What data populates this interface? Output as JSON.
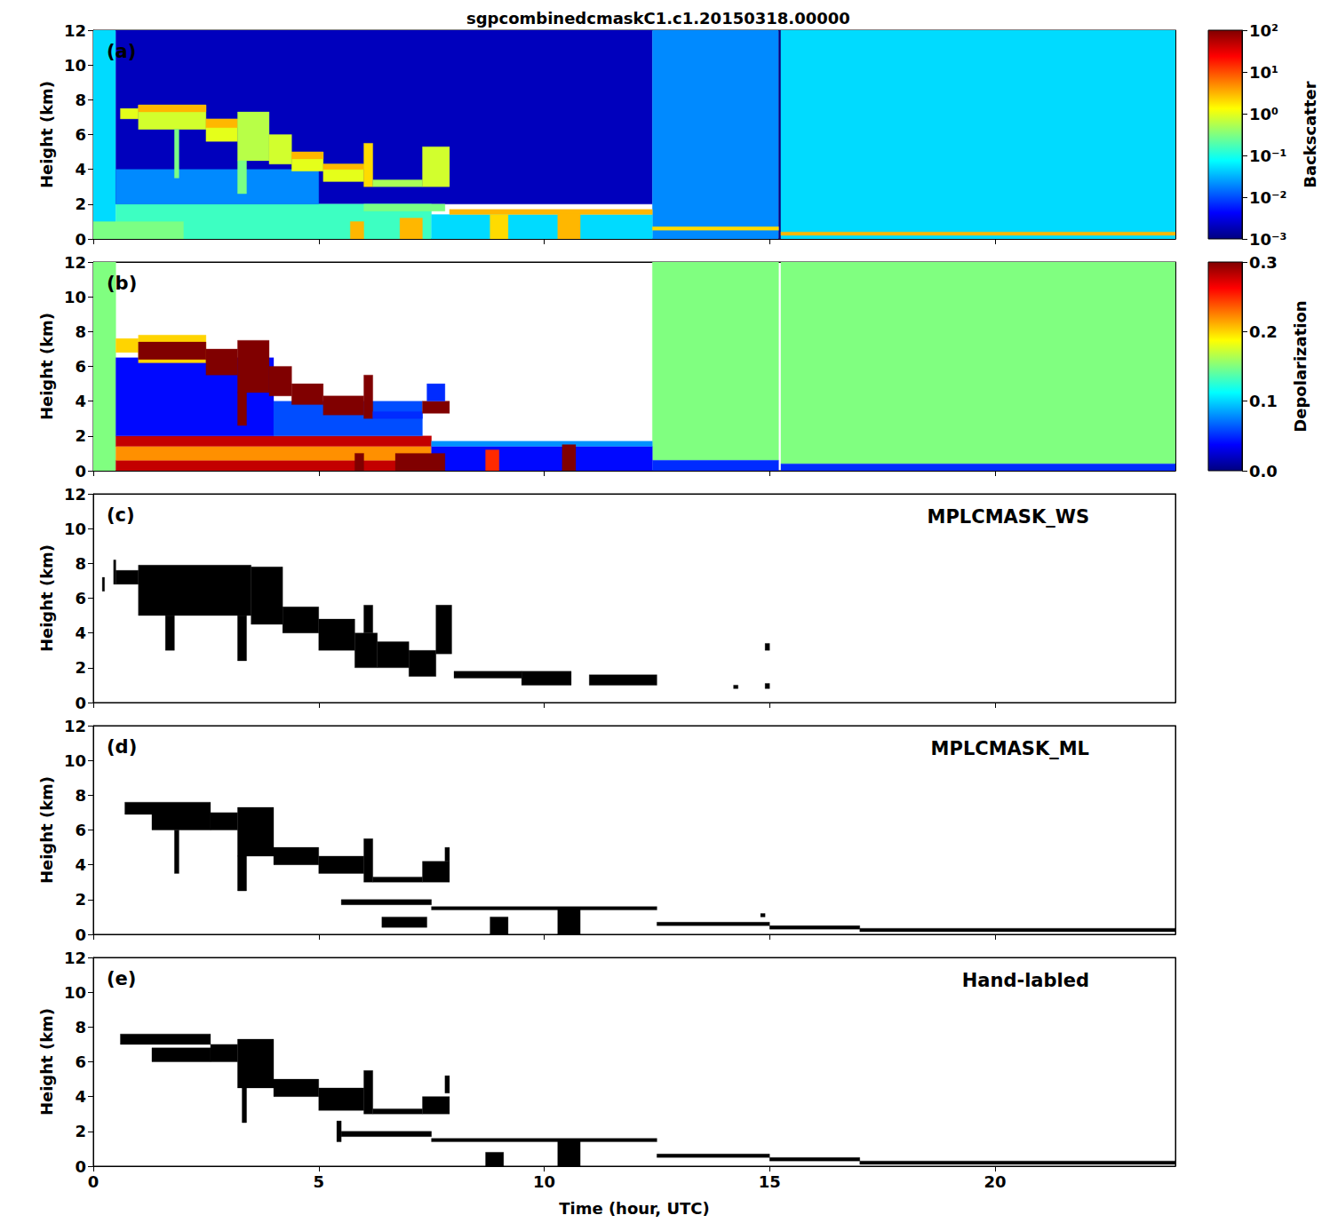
{
  "chart_data": [
    {
      "type": "heatmap",
      "title": "sgpcombinedcmaskC1.c1.20150318.00000",
      "panel": "(a)",
      "ylabel": "Height (km)",
      "tick_labels": "y",
      "xlim": [
        0,
        24
      ],
      "xticks": [
        0,
        5,
        10,
        15,
        20
      ],
      "ylim": [
        0,
        12
      ],
      "yticks": [
        0,
        2,
        4,
        6,
        8,
        10,
        12
      ],
      "colorbar": {
        "label": "Backscatter",
        "log": true,
        "range": [
          0.001,
          100
        ],
        "ticks": [
          {
            "value": 0.001,
            "label": "10⁻³"
          },
          {
            "value": 0.01,
            "label": "10⁻²"
          },
          {
            "value": 0.1,
            "label": "10⁻¹"
          },
          {
            "value": 1,
            "label": "10⁰"
          },
          {
            "value": 10,
            "label": "10¹"
          },
          {
            "value": 100,
            "label": "10²"
          }
        ]
      },
      "cells": [
        [
          0,
          0.5,
          0,
          12,
          0.05
        ],
        [
          0.5,
          12.4,
          2,
          12,
          0.002
        ],
        [
          12.4,
          15.2,
          0,
          12,
          0.02
        ],
        [
          15.2,
          15.25,
          0,
          12,
          0.001
        ],
        [
          15.25,
          24,
          0,
          12,
          0.05
        ],
        [
          0.5,
          7.5,
          0,
          2,
          0.15
        ],
        [
          0.5,
          5,
          2,
          4,
          0.02
        ],
        [
          7.5,
          12.4,
          0,
          1.4,
          0.05
        ],
        [
          0,
          2,
          0,
          1,
          0.3
        ],
        [
          0.6,
          1.0,
          6.9,
          7.5,
          1
        ],
        [
          1.0,
          2.5,
          6.3,
          7.7,
          0.8
        ],
        [
          1.0,
          2.5,
          7.3,
          7.7,
          3
        ],
        [
          1.8,
          1.9,
          3.5,
          6.3,
          0.3
        ],
        [
          2.5,
          3.2,
          5.6,
          6.9,
          1
        ],
        [
          2.5,
          3.2,
          6.4,
          6.9,
          3
        ],
        [
          3.2,
          3.9,
          4.5,
          7.3,
          0.6
        ],
        [
          3.2,
          3.4,
          2.6,
          4.5,
          0.3
        ],
        [
          3.9,
          4.4,
          4.3,
          6.0,
          0.8
        ],
        [
          4.4,
          5.1,
          3.9,
          5.0,
          1
        ],
        [
          4.4,
          5.1,
          4.6,
          5.0,
          3
        ],
        [
          5.1,
          6.0,
          3.3,
          4.3,
          1
        ],
        [
          5.1,
          6.0,
          4.0,
          4.3,
          3
        ],
        [
          6.0,
          6.2,
          3.0,
          5.5,
          2
        ],
        [
          6.2,
          7.3,
          3.0,
          3.4,
          0.5
        ],
        [
          7.3,
          7.9,
          3.0,
          5.3,
          0.8
        ],
        [
          6.0,
          7.8,
          1.6,
          2.0,
          0.3
        ],
        [
          7.9,
          12.4,
          1.4,
          1.7,
          3
        ],
        [
          12.4,
          15.2,
          0.5,
          0.7,
          2
        ],
        [
          15.25,
          24,
          0.2,
          0.4,
          3
        ],
        [
          5.7,
          6.0,
          0,
          1.0,
          3
        ],
        [
          6.8,
          7.3,
          0,
          1.2,
          3
        ],
        [
          8.8,
          9.2,
          0,
          1.4,
          2
        ],
        [
          10.3,
          10.8,
          0,
          1.5,
          3
        ]
      ]
    },
    {
      "type": "heatmap",
      "panel": "(b)",
      "ylabel": "Height (km)",
      "tick_labels": "y",
      "xlim": [
        0,
        24
      ],
      "xticks": [
        0,
        5,
        10,
        15,
        20
      ],
      "ylim": [
        0,
        12
      ],
      "yticks": [
        0,
        2,
        4,
        6,
        8,
        10,
        12
      ],
      "colorbar": {
        "label": "Depolarization",
        "range": [
          0,
          0.3
        ],
        "ticks": [
          {
            "value": 0,
            "label": "0.0"
          },
          0.1,
          0.2,
          0.3
        ]
      },
      "cells": [
        [
          0,
          0.5,
          0,
          12,
          0.15
        ],
        [
          12.4,
          15.2,
          0.6,
          12,
          0.15
        ],
        [
          15.25,
          24,
          0.4,
          12,
          0.15
        ],
        [
          0.5,
          7.5,
          0,
          0.6,
          0.28
        ],
        [
          0.5,
          7.5,
          0.6,
          1.4,
          0.22
        ],
        [
          0.5,
          7.5,
          1.4,
          2,
          0.28
        ],
        [
          0.5,
          4,
          2,
          6.5,
          0.04
        ],
        [
          4,
          7.3,
          2,
          4,
          0.06
        ],
        [
          7.5,
          12.4,
          0,
          1.4,
          0.04
        ],
        [
          7.5,
          12.4,
          1.4,
          1.7,
          0.08
        ],
        [
          12.4,
          15.2,
          0,
          0.6,
          0.05
        ],
        [
          15.25,
          24,
          0,
          0.4,
          0.05
        ],
        [
          0.5,
          1.0,
          6.8,
          7.6,
          0.2
        ],
        [
          1.0,
          2.5,
          6.2,
          7.8,
          0.2
        ],
        [
          1.0,
          2.5,
          6.4,
          7.4,
          0.3
        ],
        [
          2.5,
          3.2,
          5.5,
          7.0,
          0.3
        ],
        [
          3.2,
          3.9,
          4.5,
          7.5,
          0.3
        ],
        [
          3.9,
          4.4,
          4.3,
          6.0,
          0.3
        ],
        [
          4.4,
          5.1,
          3.8,
          5.0,
          0.3
        ],
        [
          5.1,
          6.0,
          3.2,
          4.3,
          0.3
        ],
        [
          6.0,
          6.2,
          3.0,
          5.5,
          0.3
        ],
        [
          6.2,
          7.3,
          3.0,
          3.4,
          0.05
        ],
        [
          7.3,
          7.9,
          3.3,
          4.0,
          0.3
        ],
        [
          7.4,
          7.8,
          4.0,
          5.0,
          0.05
        ],
        [
          3.2,
          3.4,
          2.6,
          4.5,
          0.3
        ],
        [
          5.8,
          6.0,
          0,
          1.0,
          0.3
        ],
        [
          6.7,
          7.8,
          0,
          1.0,
          0.3
        ],
        [
          8.7,
          9.0,
          0,
          1.2,
          0.25
        ],
        [
          10.4,
          10.7,
          0,
          1.5,
          0.3
        ]
      ]
    },
    {
      "type": "mask",
      "panel": "(c)",
      "annotation": "MPLCMASK_WS",
      "color": "#000000",
      "ylabel": "Height (km)",
      "tick_labels": "y",
      "xlim": [
        0,
        24
      ],
      "xticks": [
        0,
        5,
        10,
        15,
        20
      ],
      "ylim": [
        0,
        12
      ],
      "yticks": [
        0,
        2,
        4,
        6,
        8,
        10,
        12
      ],
      "cells": [
        [
          0.2,
          0.25,
          6.4,
          7.2
        ],
        [
          0.45,
          0.5,
          6.8,
          8.2
        ],
        [
          0.5,
          1.0,
          6.8,
          7.6
        ],
        [
          1.0,
          3.5,
          5.0,
          7.9
        ],
        [
          1.6,
          1.8,
          3.0,
          5.0
        ],
        [
          3.2,
          3.4,
          2.4,
          5.0
        ],
        [
          3.5,
          4.2,
          4.5,
          7.8
        ],
        [
          4.2,
          5.0,
          4.0,
          5.5
        ],
        [
          5.0,
          5.8,
          3.0,
          4.8
        ],
        [
          5.8,
          6.3,
          2.0,
          4.0
        ],
        [
          6.0,
          6.2,
          4.0,
          5.6
        ],
        [
          6.3,
          7.0,
          2.0,
          3.5
        ],
        [
          7.0,
          7.6,
          1.5,
          3.0
        ],
        [
          7.6,
          7.95,
          2.8,
          5.6
        ],
        [
          8.0,
          9.5,
          1.4,
          1.8
        ],
        [
          9.5,
          10.6,
          1.0,
          1.8
        ],
        [
          11.0,
          12.5,
          1.0,
          1.6
        ],
        [
          14.2,
          14.3,
          0.8,
          1.0
        ],
        [
          14.9,
          15.0,
          0.8,
          1.1
        ],
        [
          14.9,
          15.0,
          3.0,
          3.4
        ]
      ]
    },
    {
      "type": "mask",
      "panel": "(d)",
      "annotation": "MPLCMASK_ML",
      "color": "#000000",
      "ylabel": "Height (km)",
      "tick_labels": "y",
      "xlim": [
        0,
        24
      ],
      "xticks": [
        0,
        5,
        10,
        15,
        20
      ],
      "ylim": [
        0,
        12
      ],
      "yticks": [
        0,
        2,
        4,
        6,
        8,
        10,
        12
      ],
      "cells": [
        [
          0.7,
          2.6,
          6.9,
          7.6
        ],
        [
          1.3,
          2.6,
          6.0,
          6.9
        ],
        [
          1.8,
          1.9,
          3.5,
          6.0
        ],
        [
          2.6,
          3.2,
          6.0,
          7.0
        ],
        [
          3.2,
          4.0,
          4.5,
          7.3
        ],
        [
          3.2,
          3.4,
          2.5,
          4.5
        ],
        [
          4.0,
          5.0,
          4.0,
          5.0
        ],
        [
          5.0,
          6.0,
          3.5,
          4.5
        ],
        [
          6.0,
          6.2,
          3.0,
          5.5
        ],
        [
          6.2,
          7.3,
          3.0,
          3.3
        ],
        [
          7.3,
          7.9,
          3.0,
          4.2
        ],
        [
          7.8,
          7.9,
          4.2,
          5.0
        ],
        [
          5.5,
          7.5,
          1.7,
          2.0
        ],
        [
          6.4,
          7.4,
          0.4,
          1.0
        ],
        [
          7.5,
          12.5,
          1.4,
          1.6
        ],
        [
          8.8,
          9.2,
          0,
          1.0
        ],
        [
          10.3,
          10.8,
          0,
          1.5
        ],
        [
          12.5,
          15.0,
          0.5,
          0.7
        ],
        [
          15.0,
          17.0,
          0.3,
          0.5
        ],
        [
          17.0,
          24.0,
          0.15,
          0.35
        ],
        [
          14.8,
          14.9,
          1.0,
          1.2
        ]
      ]
    },
    {
      "type": "mask",
      "panel": "(e)",
      "annotation": "Hand-labled",
      "color": "#000000",
      "ylabel": "Height (km)",
      "xlabel": "Time (hour, UTC)",
      "xlim": [
        0,
        24
      ],
      "xticks": [
        0,
        5,
        10,
        15,
        20
      ],
      "ylim": [
        0,
        12
      ],
      "yticks": [
        0,
        2,
        4,
        6,
        8,
        10,
        12
      ],
      "cells": [
        [
          0.6,
          2.6,
          7.0,
          7.6
        ],
        [
          1.3,
          2.6,
          6.0,
          6.8
        ],
        [
          2.6,
          3.2,
          6.0,
          7.0
        ],
        [
          3.2,
          4.0,
          4.5,
          7.3
        ],
        [
          3.3,
          3.4,
          2.5,
          4.5
        ],
        [
          4.0,
          5.0,
          4.0,
          5.0
        ],
        [
          5.0,
          6.0,
          3.2,
          4.5
        ],
        [
          6.0,
          6.2,
          3.0,
          5.5
        ],
        [
          6.2,
          7.3,
          3.0,
          3.3
        ],
        [
          7.3,
          7.9,
          3.0,
          4.0
        ],
        [
          7.8,
          7.9,
          4.2,
          5.2
        ],
        [
          5.5,
          7.5,
          1.7,
          2.0
        ],
        [
          5.4,
          5.5,
          1.4,
          2.6
        ],
        [
          7.5,
          12.5,
          1.4,
          1.6
        ],
        [
          8.7,
          9.1,
          0,
          0.8
        ],
        [
          10.3,
          10.8,
          0,
          1.5
        ],
        [
          12.5,
          15.0,
          0.5,
          0.7
        ],
        [
          15.0,
          17.0,
          0.3,
          0.5
        ],
        [
          17.0,
          24.0,
          0.1,
          0.3
        ]
      ]
    }
  ]
}
